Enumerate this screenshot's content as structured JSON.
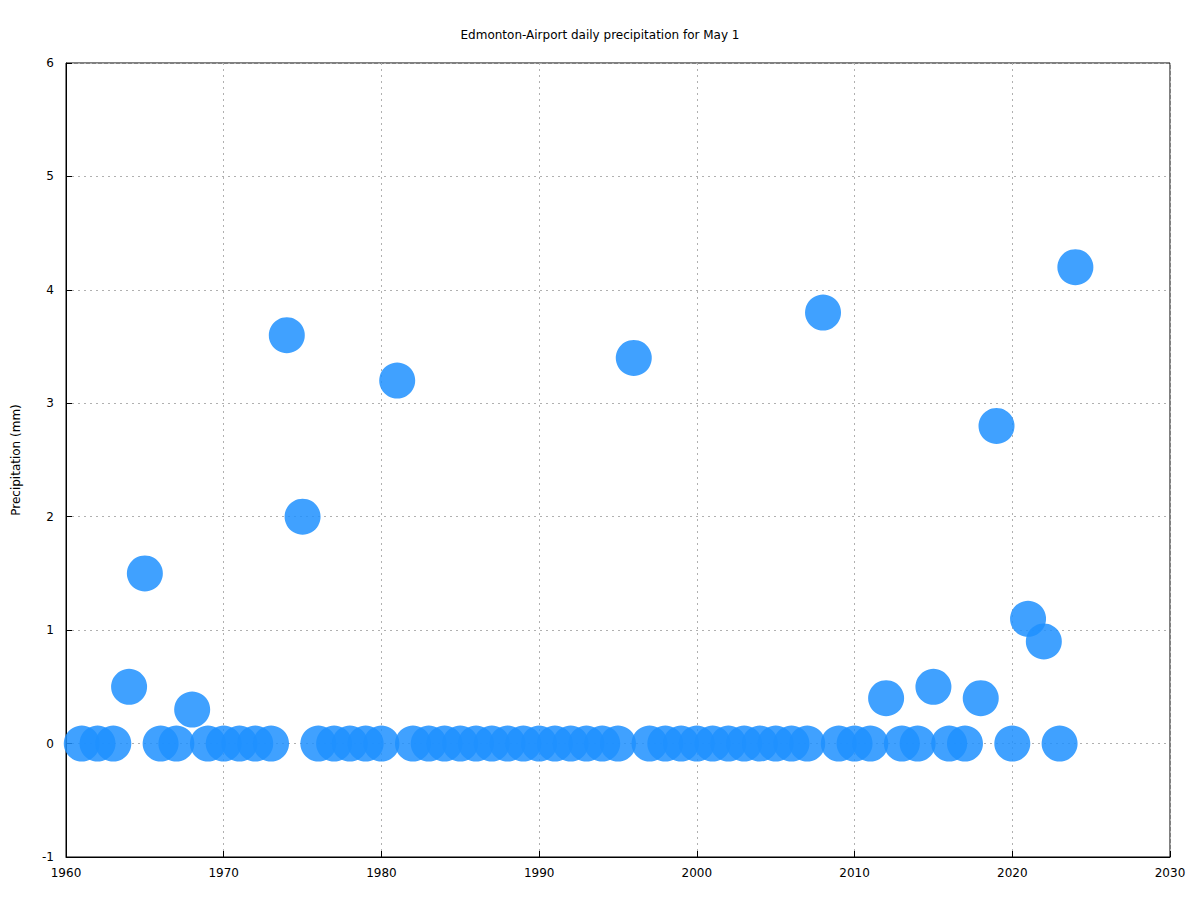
{
  "chart_data": {
    "type": "scatter",
    "title": "Edmonton-Airport daily precipitation for May 1",
    "y_label": "Precipitation (mm)",
    "x": [
      1961,
      1962,
      1963,
      1964,
      1965,
      1966,
      1967,
      1968,
      1969,
      1970,
      1971,
      1972,
      1973,
      1974,
      1975,
      1976,
      1977,
      1978,
      1979,
      1980,
      1981,
      1982,
      1983,
      1984,
      1985,
      1986,
      1987,
      1988,
      1989,
      1990,
      1991,
      1992,
      1993,
      1994,
      1995,
      1996,
      1997,
      1998,
      1999,
      2000,
      2001,
      2002,
      2003,
      2004,
      2005,
      2006,
      2007,
      2008,
      2009,
      2010,
      2011,
      2012,
      2013,
      2014,
      2015,
      2016,
      2017,
      2018,
      2019,
      2020,
      2021,
      2022,
      2023,
      2024
    ],
    "values": [
      0,
      0,
      0,
      0.5,
      1.5,
      0,
      0,
      0.3,
      0,
      0,
      0,
      0,
      0,
      3.6,
      2.0,
      0,
      0,
      0,
      0,
      0,
      3.2,
      0,
      0,
      0,
      0,
      0,
      0,
      0,
      0,
      0,
      0,
      0,
      0,
      0,
      0,
      3.4,
      0,
      0,
      0,
      0,
      0,
      0,
      0,
      0,
      0,
      0,
      0,
      3.8,
      0,
      0,
      0,
      0.4,
      0,
      0,
      0.5,
      0,
      0,
      0.4,
      2.8,
      0,
      1.1,
      0.9,
      0,
      4.2
    ],
    "color": "#1e90ff",
    "marker": "circle",
    "xlim": [
      1960,
      2030
    ],
    "xticks": [
      1960,
      1970,
      1980,
      1990,
      2000,
      2010,
      2020,
      2030
    ],
    "ylim": [
      -1,
      6
    ],
    "yticks": [
      -1,
      0,
      1,
      2,
      3,
      4,
      5,
      6
    ],
    "grid": true
  }
}
